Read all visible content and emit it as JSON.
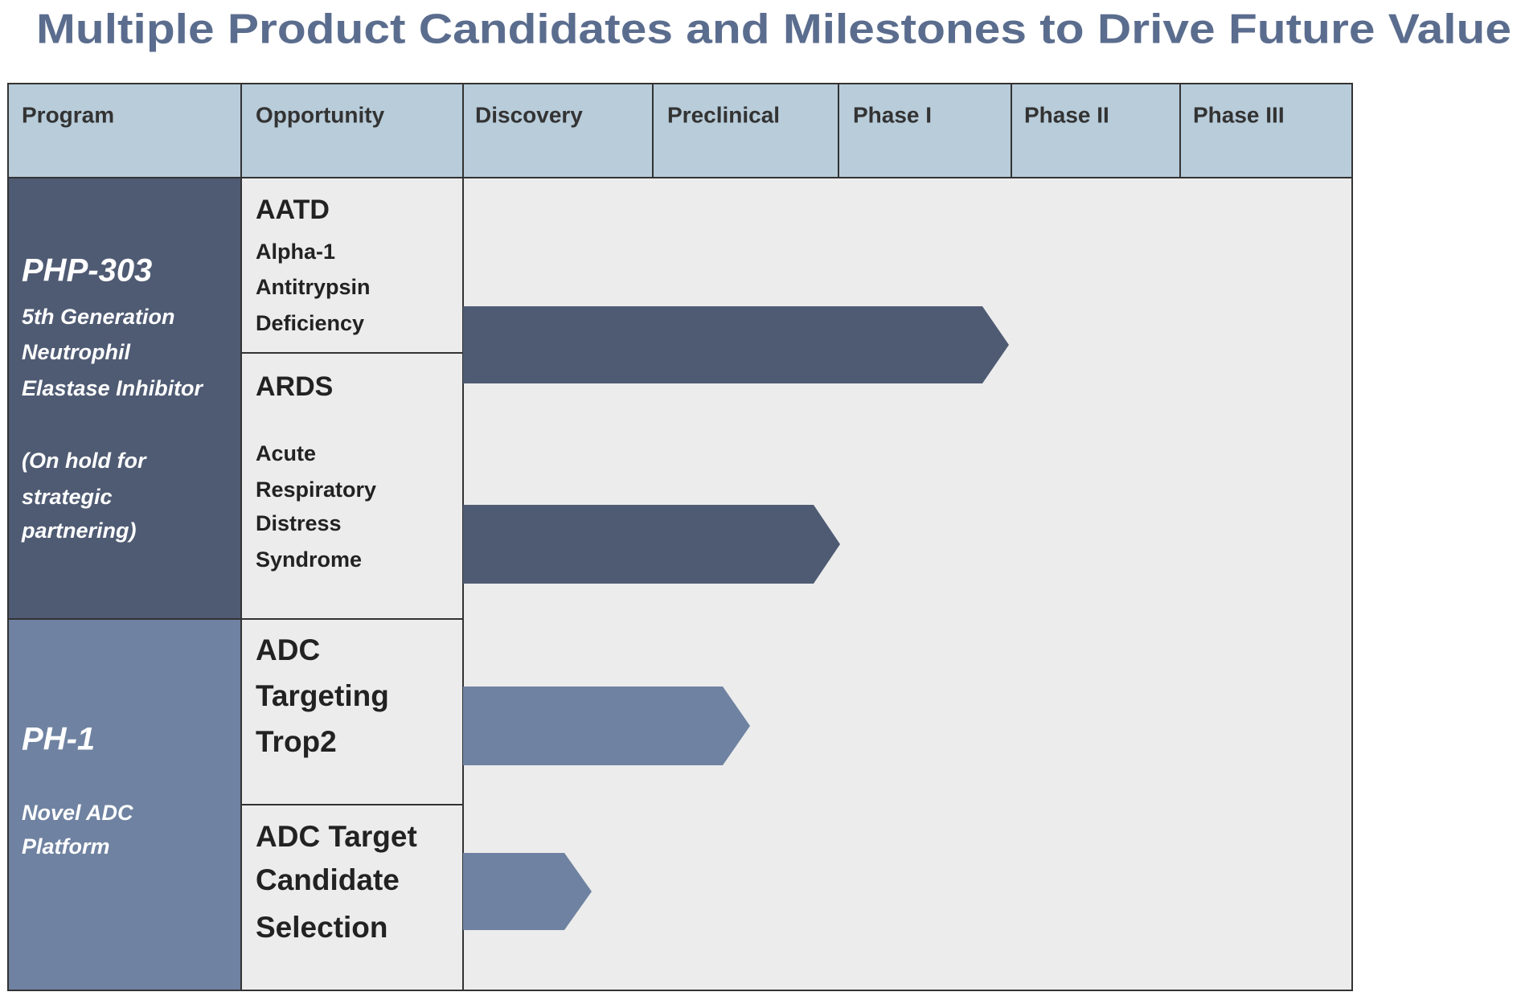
{
  "title": "Multiple Product Candidates and Milestones to Drive Future Value",
  "table": {
    "headers": [
      "Program",
      "Opportunity",
      "Discovery",
      "Preclinical",
      "Phase I",
      "Phase II",
      "Phase III"
    ],
    "programs": [
      {
        "name": "PHP-303",
        "lines": [
          "5th Generation",
          "Neutrophil",
          "Elastase Inhibitor",
          "(On hold for",
          "strategic",
          "partnering)"
        ],
        "opportunities": [
          {
            "title_lines": [
              "AATD"
            ],
            "detail_lines": [
              "Alpha-1",
              "Antitrypsin",
              "Deficiency"
            ]
          },
          {
            "title_lines": [
              "ARDS"
            ],
            "detail_lines": [
              "Acute",
              "Respiratory",
              "Distress",
              "Syndrome"
            ]
          }
        ]
      },
      {
        "name": "PH-1",
        "lines": [
          "Novel ADC",
          "Platform"
        ],
        "opportunities": [
          {
            "title_lines": [
              "ADC",
              "Targeting",
              "Trop2"
            ],
            "detail_lines": []
          },
          {
            "title_lines": [
              "ADC Target",
              "Candidate",
              "Selection"
            ],
            "detail_lines": []
          }
        ]
      }
    ]
  }
}
